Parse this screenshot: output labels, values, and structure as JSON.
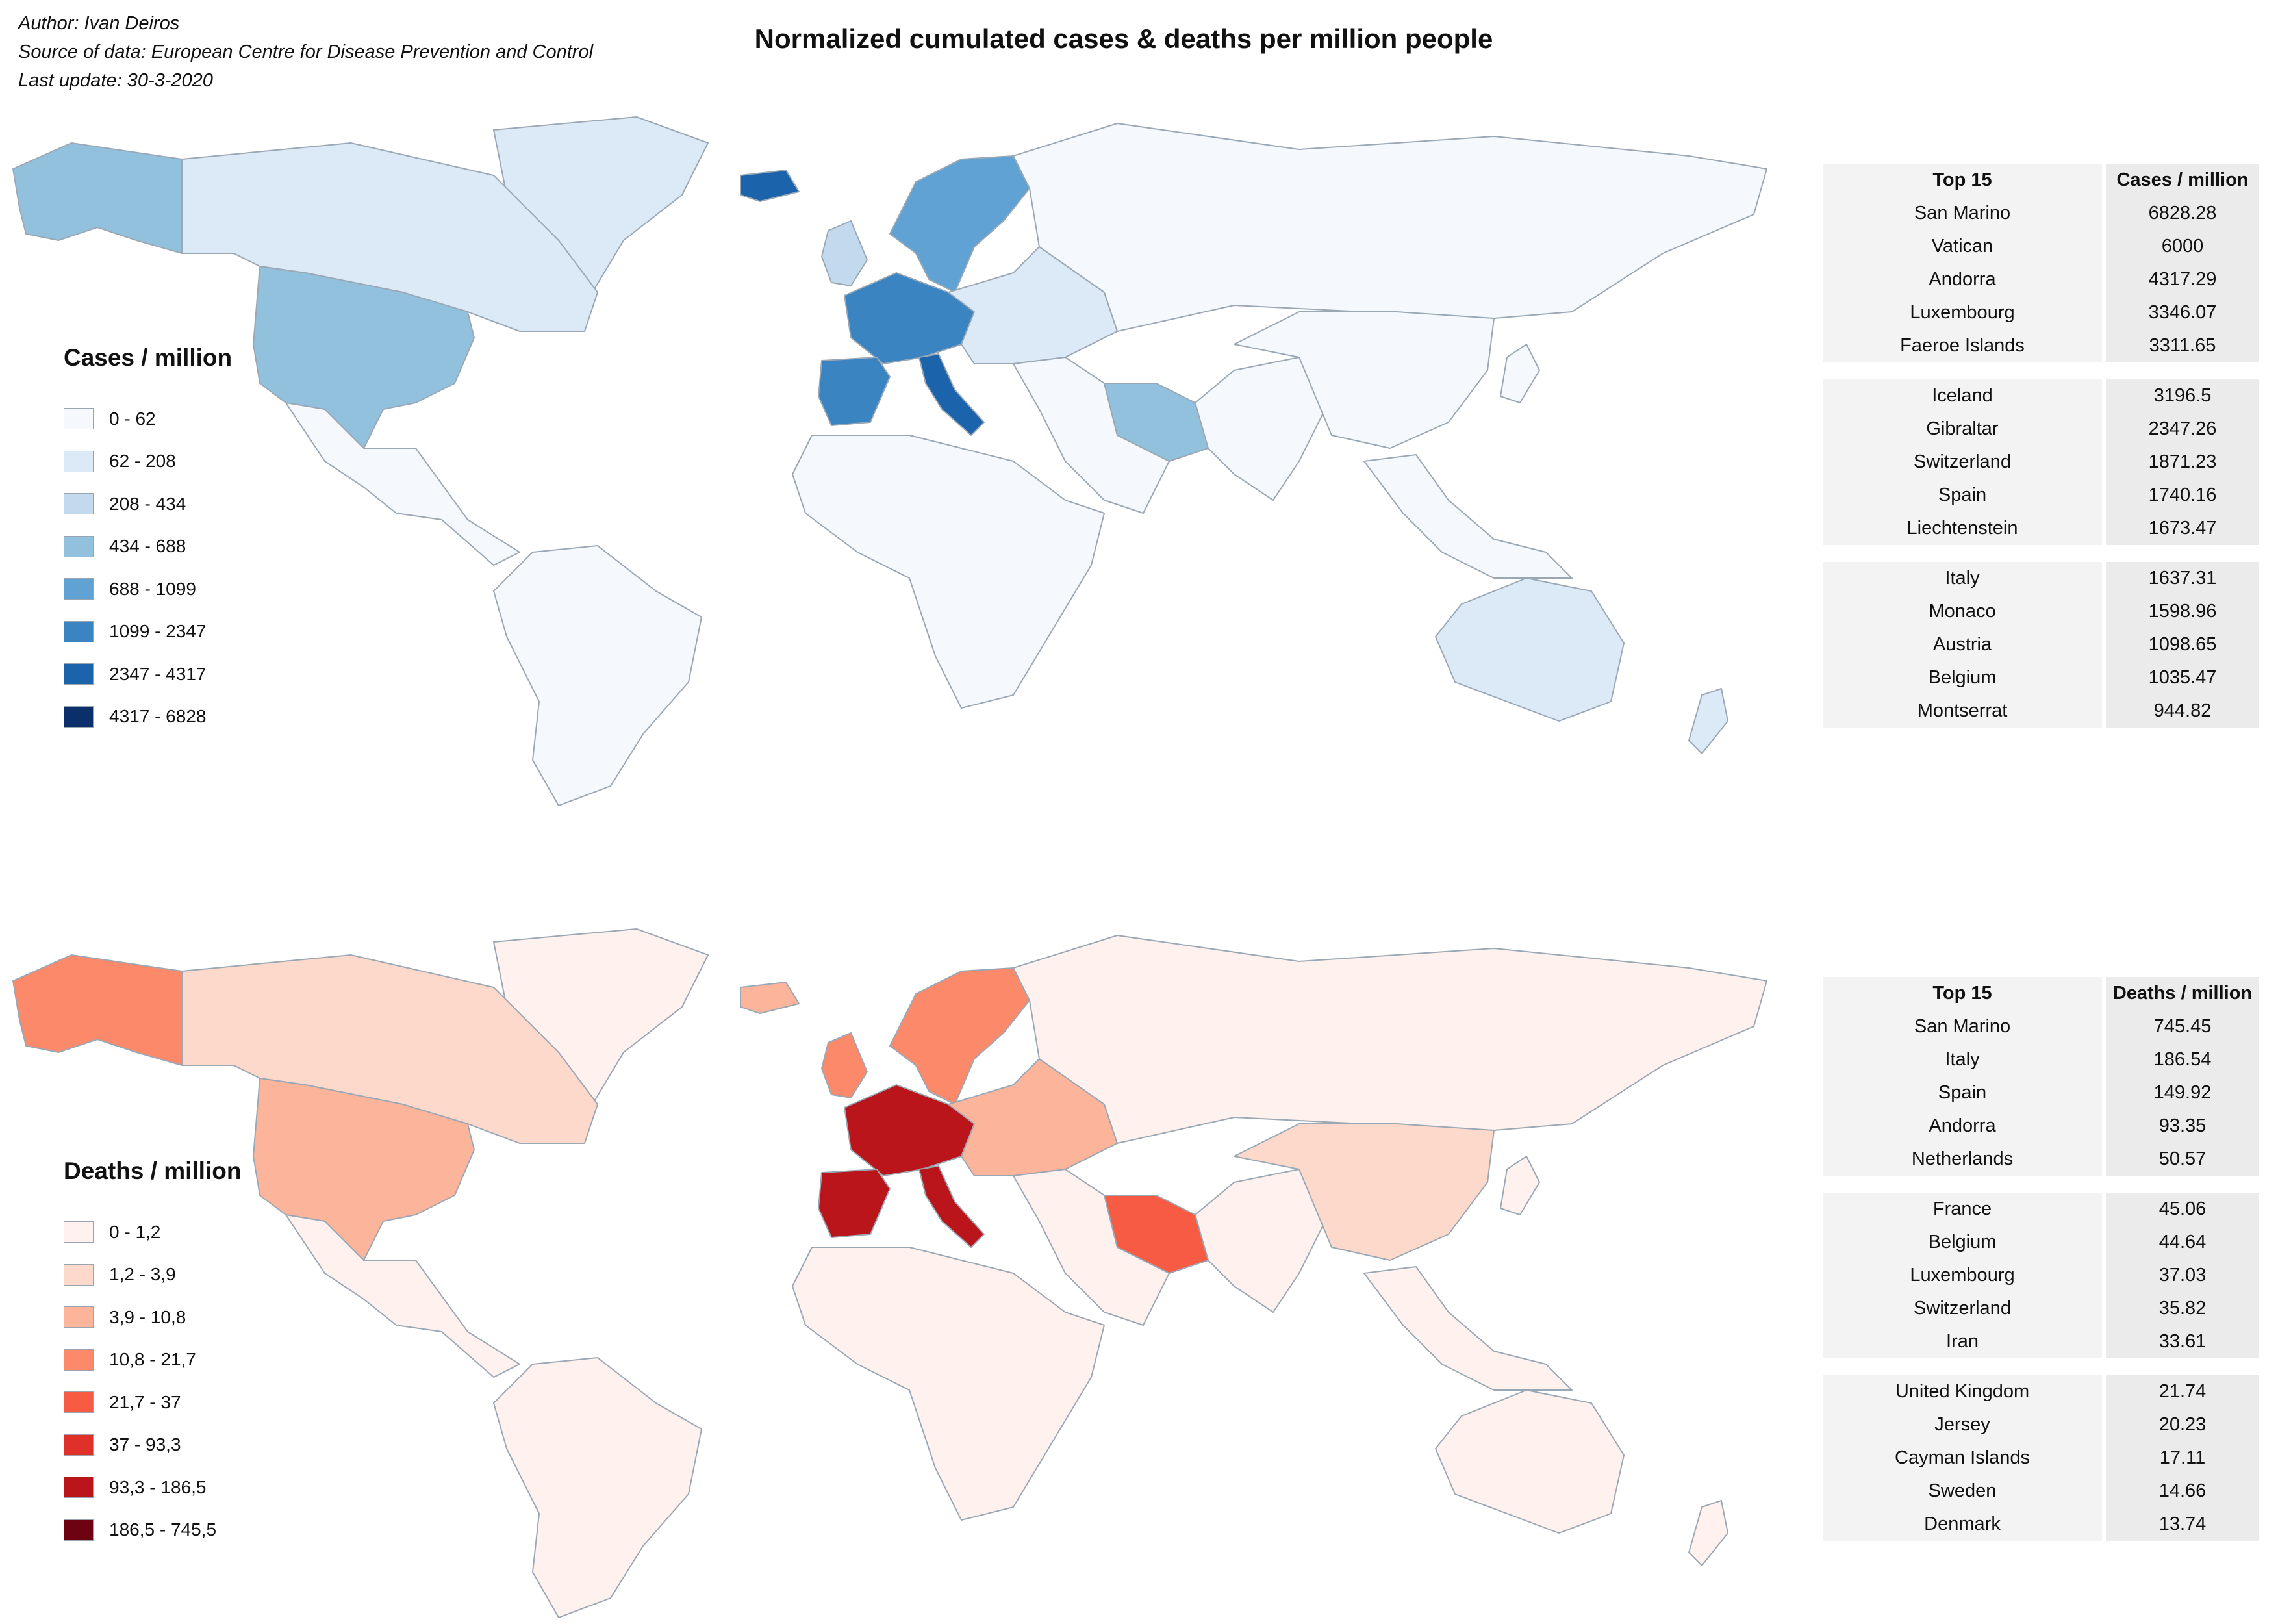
{
  "meta": {
    "author": "Author: Ivan Deiros",
    "source": "Source of data: European Centre for Disease Prevention and Control",
    "updated": "Last update: 30-3-2020"
  },
  "title": "Normalized cumulated cases & deaths per million people",
  "cases_legend": {
    "title": "Cases / million",
    "items": [
      {
        "label": "0 - 62",
        "color": "#f5f9fe"
      },
      {
        "label": "62 - 208",
        "color": "#dce9f6"
      },
      {
        "label": "208 - 434",
        "color": "#c2d9ee"
      },
      {
        "label": "434 - 688",
        "color": "#92c1de"
      },
      {
        "label": "688 - 1099",
        "color": "#5fa2d3"
      },
      {
        "label": "1099 - 2347",
        "color": "#3a84c2"
      },
      {
        "label": "2347 - 4317",
        "color": "#1b63aa"
      },
      {
        "label": "4317 - 6828",
        "color": "#0a2f6b"
      }
    ]
  },
  "deaths_legend": {
    "title": "Deaths / million",
    "items": [
      {
        "label": "0 - 1,2",
        "color": "#fff2ee"
      },
      {
        "label": "1,2 - 3,9",
        "color": "#fdd9cb"
      },
      {
        "label": "3,9 - 10,8",
        "color": "#fcb49a"
      },
      {
        "label": "10,8 - 21,7",
        "color": "#fc8a6a"
      },
      {
        "label": "21,7 - 37",
        "color": "#f75b44"
      },
      {
        "label": "37 - 93,3",
        "color": "#e0302a"
      },
      {
        "label": "93,3 - 186,5",
        "color": "#b9151b"
      },
      {
        "label": "186,5 - 745,5",
        "color": "#6d0311"
      }
    ]
  },
  "cases_table": {
    "header": [
      "Top 15",
      "Cases / million"
    ],
    "groups": [
      [
        [
          "San Marino",
          "6828.28"
        ],
        [
          "Vatican",
          "6000"
        ],
        [
          "Andorra",
          "4317.29"
        ],
        [
          "Luxembourg",
          "3346.07"
        ],
        [
          "Faeroe Islands",
          "3311.65"
        ]
      ],
      [
        [
          "Iceland",
          "3196.5"
        ],
        [
          "Gibraltar",
          "2347.26"
        ],
        [
          "Switzerland",
          "1871.23"
        ],
        [
          "Spain",
          "1740.16"
        ],
        [
          "Liechtenstein",
          "1673.47"
        ]
      ],
      [
        [
          "Italy",
          "1637.31"
        ],
        [
          "Monaco",
          "1598.96"
        ],
        [
          "Austria",
          "1098.65"
        ],
        [
          "Belgium",
          "1035.47"
        ],
        [
          "Montserrat",
          "944.82"
        ]
      ]
    ]
  },
  "deaths_table": {
    "header": [
      "Top 15",
      "Deaths / million"
    ],
    "groups": [
      [
        [
          "San Marino",
          "745.45"
        ],
        [
          "Italy",
          "186.54"
        ],
        [
          "Spain",
          "149.92"
        ],
        [
          "Andorra",
          "93.35"
        ],
        [
          "Netherlands",
          "50.57"
        ]
      ],
      [
        [
          "France",
          "45.06"
        ],
        [
          "Belgium",
          "44.64"
        ],
        [
          "Luxembourg",
          "37.03"
        ],
        [
          "Switzerland",
          "35.82"
        ],
        [
          "Iran",
          "33.61"
        ]
      ],
      [
        [
          "United Kingdom",
          "21.74"
        ],
        [
          "Jersey",
          "20.23"
        ],
        [
          "Cayman Islands",
          "17.11"
        ],
        [
          "Sweden",
          "14.66"
        ],
        [
          "Denmark",
          "13.74"
        ]
      ]
    ]
  },
  "map_regions": {
    "cases": {
      "canada": 1,
      "alaska": 3,
      "usa": 3,
      "greenland": 1,
      "mexico_central": 0,
      "south_america": 0,
      "europe_west": 5,
      "iberia": 5,
      "italy": 6,
      "iceland": 6,
      "scandinavia": 4,
      "uk": 2,
      "eastern_europe": 1,
      "russia": 0,
      "africa": 0,
      "middle_east": 0,
      "iran": 3,
      "asia": 0,
      "china": 0,
      "southeast_asia": 0,
      "australia": 1,
      "new_zealand": 1,
      "japan": 0
    },
    "deaths": {
      "canada": 1,
      "alaska": 3,
      "usa": 2,
      "greenland": 0,
      "mexico_central": 0,
      "south_america": 0,
      "europe_west": 6,
      "iberia": 6,
      "italy": 6,
      "iceland": 2,
      "scandinavia": 3,
      "uk": 3,
      "eastern_europe": 2,
      "russia": 0,
      "africa": 0,
      "middle_east": 0,
      "iran": 4,
      "asia": 0,
      "china": 1,
      "southeast_asia": 0,
      "australia": 0,
      "new_zealand": 0,
      "japan": 0
    }
  }
}
